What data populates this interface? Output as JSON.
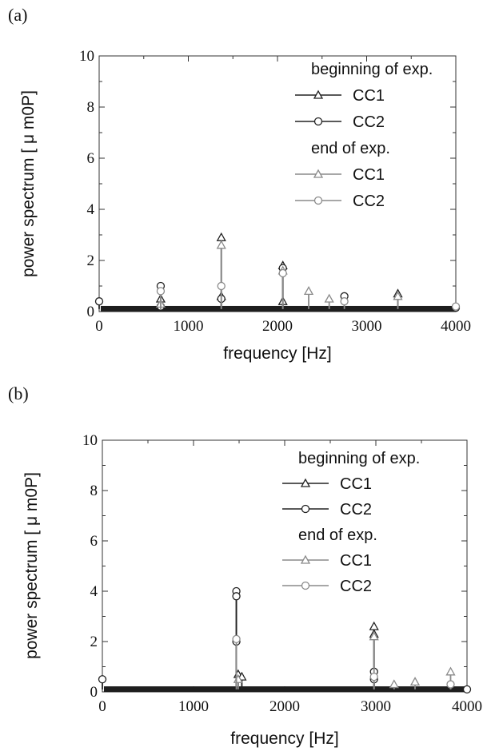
{
  "chart_data": [
    {
      "panel_label": "(a)",
      "type": "line",
      "xlabel": "frequency [Hz]",
      "ylabel": "power spectrum [ μ m0P]",
      "xlim": [
        0,
        4000
      ],
      "ylim": [
        0,
        10
      ],
      "xticks": [
        "0",
        "1000",
        "2000",
        "3000",
        "4000"
      ],
      "yticks": [
        "0",
        "2",
        "4",
        "6",
        "8",
        "10"
      ],
      "legend": {
        "position": "top-right",
        "groups": [
          {
            "title": "beginning of exp.",
            "entries": [
              "CC1",
              "CC2"
            ]
          },
          {
            "title": "end of exp.",
            "entries": [
              "CC1",
              "CC2"
            ]
          }
        ]
      },
      "baseline": 0.1,
      "series": [
        {
          "name": "CC1",
          "group": "beginning of exp.",
          "marker": "triangle",
          "color": "#222222",
          "x": [
            690,
            1370,
            1370,
            2060,
            2060,
            3350
          ],
          "y": [
            0.5,
            2.9,
            0.6,
            1.8,
            0.4,
            0.7
          ]
        },
        {
          "name": "CC2",
          "group": "beginning of exp.",
          "marker": "circle",
          "color": "#222222",
          "x": [
            0,
            690,
            690,
            1370,
            2060,
            2750,
            4000
          ],
          "y": [
            0.4,
            1.0,
            0.2,
            0.5,
            1.7,
            0.6,
            0.15
          ]
        },
        {
          "name": "CC1",
          "group": "end of exp.",
          "marker": "triangle",
          "color": "#8a8a8a",
          "x": [
            690,
            1370,
            2060,
            2350,
            2580,
            3350
          ],
          "y": [
            0.3,
            2.6,
            1.6,
            0.8,
            0.5,
            0.6
          ]
        },
        {
          "name": "CC2",
          "group": "end of exp.",
          "marker": "circle",
          "color": "#8a8a8a",
          "x": [
            690,
            1370,
            2060,
            2750,
            4000
          ],
          "y": [
            0.8,
            1.0,
            1.5,
            0.4,
            0.2
          ]
        }
      ]
    },
    {
      "panel_label": "(b)",
      "type": "line",
      "xlabel": "frequency [Hz]",
      "ylabel": "power spectrum [ μ m0P]",
      "xlim": [
        0,
        4000
      ],
      "ylim": [
        0,
        10
      ],
      "xticks": [
        "0",
        "1000",
        "2000",
        "3000",
        "4000"
      ],
      "yticks": [
        "0",
        "2",
        "4",
        "6",
        "8",
        "10"
      ],
      "legend": {
        "position": "top-right",
        "groups": [
          {
            "title": "beginning of exp.",
            "entries": [
              "CC1",
              "CC2"
            ]
          },
          {
            "title": "end of exp.",
            "entries": [
              "CC1",
              "CC2"
            ]
          }
        ]
      },
      "baseline": 0.1,
      "series": [
        {
          "name": "CC1",
          "group": "beginning of exp.",
          "marker": "triangle",
          "color": "#222222",
          "x": [
            1490,
            1530,
            2980,
            2980
          ],
          "y": [
            0.7,
            0.6,
            2.6,
            2.3
          ]
        },
        {
          "name": "CC2",
          "group": "beginning of exp.",
          "marker": "circle",
          "color": "#222222",
          "x": [
            0,
            1470,
            1470,
            1470,
            2980,
            2980,
            4000
          ],
          "y": [
            0.5,
            4.0,
            3.8,
            2.0,
            0.8,
            0.5,
            0.1
          ]
        },
        {
          "name": "CC1",
          "group": "end of exp.",
          "marker": "triangle",
          "color": "#8a8a8a",
          "x": [
            1490,
            2980,
            3200,
            3430,
            3820
          ],
          "y": [
            0.5,
            2.2,
            0.3,
            0.4,
            0.8
          ]
        },
        {
          "name": "CC2",
          "group": "end of exp.",
          "marker": "circle",
          "color": "#8a8a8a",
          "x": [
            1470,
            2980,
            3820
          ],
          "y": [
            2.1,
            0.6,
            0.3
          ]
        }
      ]
    }
  ]
}
